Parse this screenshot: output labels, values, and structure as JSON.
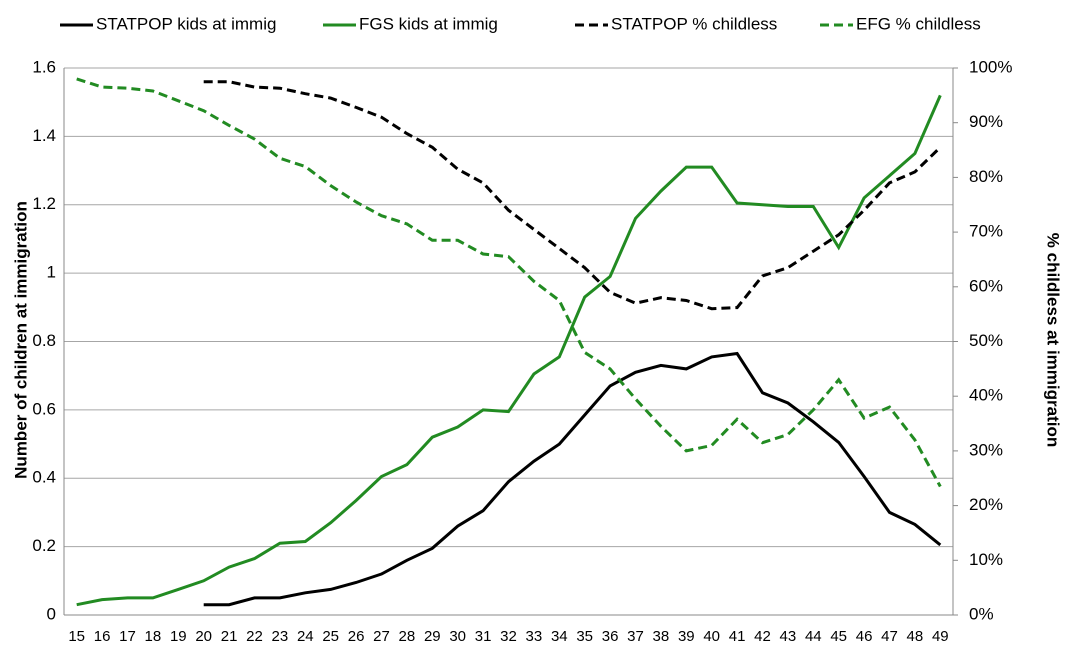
{
  "chart_data": {
    "type": "line",
    "categories": [
      "15",
      "16",
      "17",
      "18",
      "19",
      "20",
      "21",
      "22",
      "23",
      "24",
      "25",
      "26",
      "27",
      "28",
      "29",
      "30",
      "31",
      "32",
      "33",
      "34",
      "35",
      "36",
      "37",
      "38",
      "39",
      "40",
      "41",
      "42",
      "43",
      "44",
      "45",
      "46",
      "47",
      "48",
      "49"
    ],
    "ylabel": "Number of children at immigration",
    "y2label": "% childless at immigration",
    "ylim": [
      0,
      1.6
    ],
    "yticks": [
      0,
      0.2,
      0.4,
      0.6,
      0.8,
      1,
      1.2,
      1.4,
      1.6
    ],
    "y2lim": [
      0,
      100
    ],
    "y2ticks": [
      {
        "value": 0,
        "label": "0%"
      },
      {
        "value": 10,
        "label": "10%"
      },
      {
        "value": 20,
        "label": "20%"
      },
      {
        "value": 30,
        "label": "30%"
      },
      {
        "value": 40,
        "label": "40%"
      },
      {
        "value": 50,
        "label": "50%"
      },
      {
        "value": 60,
        "label": "60%"
      },
      {
        "value": 70,
        "label": "70%"
      },
      {
        "value": 80,
        "label": "80%"
      },
      {
        "value": 90,
        "label": "90%"
      },
      {
        "value": 100,
        "label": "100%"
      }
    ],
    "grid": true,
    "legend": "top",
    "series": [
      {
        "name": "STATPOP kids at immig",
        "color": "#000000",
        "dash": false,
        "values": [
          null,
          null,
          null,
          null,
          null,
          0.03,
          0.03,
          0.05,
          0.05,
          0.065,
          0.075,
          0.095,
          0.12,
          0.16,
          0.195,
          0.26,
          0.305,
          0.39,
          0.45,
          0.5,
          0.585,
          0.67,
          0.71,
          0.73,
          0.72,
          0.755,
          0.765,
          0.65,
          0.62,
          0.565,
          0.505,
          0.405,
          0.3,
          0.265,
          0.205
        ]
      },
      {
        "name": "FGS kids at immig",
        "color": "#228b22",
        "dash": false,
        "values": [
          0.03,
          0.045,
          0.05,
          0.05,
          0.075,
          0.1,
          0.14,
          0.165,
          0.21,
          0.215,
          0.27,
          0.335,
          0.405,
          0.44,
          0.52,
          0.55,
          0.6,
          0.595,
          0.705,
          0.755,
          0.93,
          0.99,
          1.16,
          1.24,
          1.31,
          1.31,
          1.205,
          1.2,
          1.195,
          1.195,
          1.075,
          1.22,
          1.285,
          1.35,
          1.52
        ]
      },
      {
        "name": "STATPOP % childless",
        "color": "#000000",
        "dash": true,
        "axis": "y2",
        "values": [
          null,
          null,
          null,
          null,
          null,
          97.5,
          97.5,
          96.5,
          96.3,
          95.3,
          94.5,
          92.8,
          91,
          88,
          85.5,
          81.5,
          79,
          74,
          70.5,
          67,
          63.5,
          59,
          57,
          58,
          57.5,
          56,
          56.2,
          62,
          63.5,
          66.5,
          69.5,
          74,
          79,
          81,
          85.5
        ]
      },
      {
        "name": "EFG % childless",
        "color": "#228b22",
        "dash": true,
        "axis": "y2",
        "values": [
          98,
          96.5,
          96.3,
          95.8,
          94,
          92.2,
          89.5,
          87,
          83.5,
          82,
          78.5,
          75.5,
          73,
          71.5,
          68.5,
          68.5,
          66,
          65.5,
          61,
          57.5,
          48,
          45,
          39.5,
          34.5,
          30,
          31,
          35.8,
          31.5,
          33,
          37.5,
          43,
          36,
          38,
          32,
          23.5
        ]
      }
    ]
  }
}
